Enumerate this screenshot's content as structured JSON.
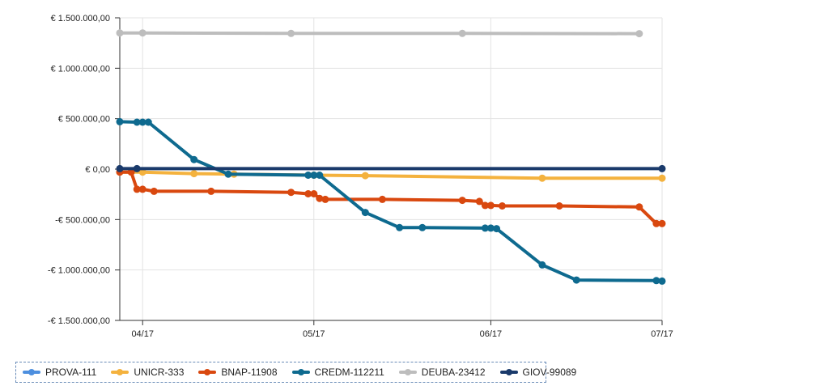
{
  "chart_data": {
    "type": "line",
    "title": "",
    "xlabel": "",
    "ylabel": "",
    "currency_prefix": "€",
    "ylim": [
      -1500000,
      1500000
    ],
    "yticks": [
      1500000,
      1000000,
      500000,
      0,
      -500000,
      -1000000,
      -1500000
    ],
    "ytick_labels": [
      "€ 1.500.000,00",
      "€ 1.000.000,00",
      "€ 500.000,00",
      "€ 0,00",
      "-€ 500.000,00",
      "-€ 1.000.000,00",
      "-€ 1.500.000,00"
    ],
    "xlim": [
      "2017-03-28",
      "2017-07-01"
    ],
    "xticks": [
      "2017-04-01",
      "2017-05-01",
      "2017-06-01",
      "2017-07-01"
    ],
    "xtick_labels": [
      "04/17",
      "05/17",
      "06/17",
      "07/17"
    ],
    "grid": true,
    "legend_position": "bottom-left",
    "series": [
      {
        "name": "PROVA-111",
        "color": "#4d8fdf",
        "points": []
      },
      {
        "name": "UNICR-333",
        "color": "#f4b23e",
        "points": [
          [
            "2017-03-28",
            -30000
          ],
          [
            "2017-04-01",
            -30000
          ],
          [
            "2017-04-10",
            -45000
          ],
          [
            "2017-04-17",
            -50000
          ],
          [
            "2017-05-01",
            -60000
          ],
          [
            "2017-05-10",
            -65000
          ],
          [
            "2017-06-10",
            -90000
          ],
          [
            "2017-07-01",
            -90000
          ]
        ]
      },
      {
        "name": "BNAP-11908",
        "color": "#d9480f",
        "points": [
          [
            "2017-03-28",
            -30000
          ],
          [
            "2017-03-30",
            -30000
          ],
          [
            "2017-03-31",
            -200000
          ],
          [
            "2017-04-01",
            -200000
          ],
          [
            "2017-04-03",
            -220000
          ],
          [
            "2017-04-13",
            -220000
          ],
          [
            "2017-04-27",
            -230000
          ],
          [
            "2017-04-30",
            -245000
          ],
          [
            "2017-05-01",
            -245000
          ],
          [
            "2017-05-02",
            -290000
          ],
          [
            "2017-05-03",
            -300000
          ],
          [
            "2017-05-13",
            -300000
          ],
          [
            "2017-05-27",
            -310000
          ],
          [
            "2017-05-30",
            -320000
          ],
          [
            "2017-05-31",
            -360000
          ],
          [
            "2017-06-01",
            -360000
          ],
          [
            "2017-06-03",
            -365000
          ],
          [
            "2017-06-13",
            -365000
          ],
          [
            "2017-06-27",
            -375000
          ],
          [
            "2017-06-30",
            -540000
          ],
          [
            "2017-07-01",
            -540000
          ]
        ]
      },
      {
        "name": "CREDM-112211",
        "color": "#0e6a8f",
        "points": [
          [
            "2017-03-28",
            470000
          ],
          [
            "2017-03-31",
            465000
          ],
          [
            "2017-04-01",
            465000
          ],
          [
            "2017-04-02",
            465000
          ],
          [
            "2017-04-10",
            95000
          ],
          [
            "2017-04-16",
            -50000
          ],
          [
            "2017-04-30",
            -60000
          ],
          [
            "2017-05-01",
            -60000
          ],
          [
            "2017-05-02",
            -60000
          ],
          [
            "2017-05-10",
            -430000
          ],
          [
            "2017-05-16",
            -580000
          ],
          [
            "2017-05-20",
            -580000
          ],
          [
            "2017-05-31",
            -585000
          ],
          [
            "2017-06-01",
            -585000
          ],
          [
            "2017-06-02",
            -590000
          ],
          [
            "2017-06-10",
            -950000
          ],
          [
            "2017-06-16",
            -1100000
          ],
          [
            "2017-06-30",
            -1105000
          ],
          [
            "2017-07-01",
            -1110000
          ]
        ]
      },
      {
        "name": "DEUBA-23412",
        "color": "#bdbdbd",
        "points": [
          [
            "2017-03-28",
            1350000
          ],
          [
            "2017-04-01",
            1350000
          ],
          [
            "2017-04-27",
            1345000
          ],
          [
            "2017-05-27",
            1345000
          ],
          [
            "2017-06-27",
            1343000
          ]
        ]
      },
      {
        "name": "GIOV-99089",
        "color": "#1a3a6b",
        "points": [
          [
            "2017-03-28",
            5000
          ],
          [
            "2017-03-31",
            5000
          ],
          [
            "2017-07-01",
            5000
          ]
        ]
      }
    ]
  }
}
